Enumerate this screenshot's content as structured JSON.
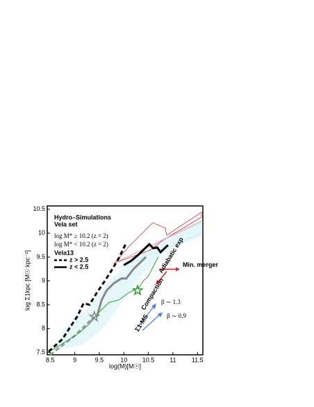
{
  "chart_data": {
    "type": "line",
    "title": "Hydro–Simulations",
    "subtitle": "Vela set",
    "x_label": "log(M)[M☉]",
    "y_label": "log Σ1kpc [M☉ kpc⁻²]",
    "xlim": [
      8.44,
      11.61
    ],
    "ylim": [
      7.45,
      10.57
    ],
    "xticks": [
      8.5,
      9,
      9.5,
      10,
      10.5,
      11,
      11.5
    ],
    "yticks": [
      7.5,
      8,
      8.5,
      9,
      9.5,
      10,
      10.5
    ],
    "series": [
      {
        "name": "log M* ≥ 10.2 (z = 2)",
        "color": "#888888",
        "width": 3,
        "dash": false,
        "x": [
          9.45,
          9.55,
          9.65,
          9.8,
          9.95,
          10.05,
          10.2,
          10.3,
          10.45
        ],
        "values": [
          8.25,
          8.6,
          8.8,
          8.95,
          9.05,
          9.05,
          9.25,
          9.35,
          9.5
        ]
      },
      {
        "name": "log M* < 10.2 (z = 2)",
        "color": "#999999",
        "width": 3,
        "dash": true,
        "x": [
          8.5,
          8.75,
          9.0,
          9.2,
          9.4
        ],
        "values": [
          7.45,
          7.65,
          7.85,
          8.05,
          8.25
        ]
      },
      {
        "name": "Vela13",
        "color": "#2ca02c",
        "width": 1,
        "dash": false,
        "x": [
          8.45,
          8.7,
          8.9,
          9.1,
          9.3,
          9.5,
          9.7,
          9.9,
          10.1,
          10.3,
          10.4,
          10.5,
          10.6,
          10.7
        ],
        "values": [
          7.5,
          7.65,
          7.78,
          7.92,
          8.1,
          8.35,
          8.55,
          8.6,
          8.75,
          8.85,
          9.0,
          9.1,
          9.3,
          9.5
        ]
      },
      {
        "name": "z > 2.5",
        "color": "#000000",
        "width": 3,
        "dash": true,
        "x": [
          8.47,
          8.75,
          8.9,
          9.05,
          9.18,
          9.3,
          9.45,
          9.6,
          9.75,
          9.9,
          10.05
        ],
        "values": [
          7.52,
          7.78,
          8.02,
          8.25,
          8.53,
          8.5,
          8.75,
          8.98,
          9.22,
          9.48,
          9.8
        ]
      },
      {
        "name": "z < 2.5",
        "color": "#000000",
        "width": 3,
        "dash": false,
        "x": [
          10.0,
          10.15,
          10.3,
          10.45,
          10.52,
          10.6,
          10.68,
          10.75,
          10.9
        ],
        "values": [
          9.33,
          9.42,
          9.55,
          9.7,
          9.77,
          9.68,
          9.7,
          9.6,
          9.75
        ]
      }
    ],
    "stars": {
      "x": [
        9.4,
        10.28
      ],
      "values": [
        8.25,
        8.8
      ],
      "colors": [
        "#888888",
        "#2ca02c"
      ]
    },
    "annotations": [
      "Min. merger",
      "Adiabatic exp",
      "Compaction",
      "Σ1-MS",
      "β ∼ 1.3",
      "β ∼ 0.9"
    ]
  }
}
